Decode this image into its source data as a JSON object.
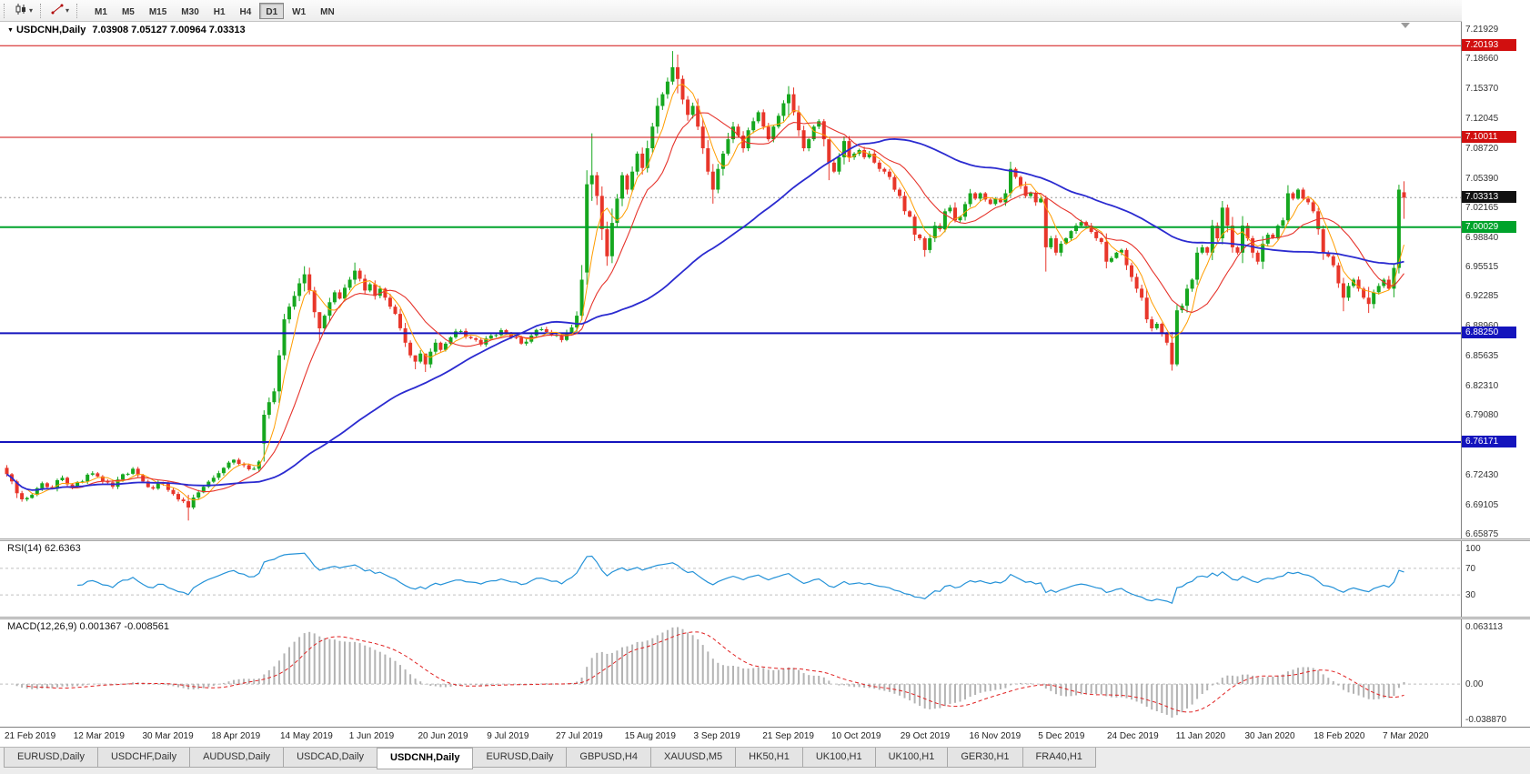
{
  "toolbar": {
    "chart_type_button": {
      "icon": "candlestick-chart-icon"
    },
    "line_studies_button": {
      "icon": "trendline-icon"
    },
    "timeframes": [
      {
        "label": "M1",
        "active": false
      },
      {
        "label": "M5",
        "active": false
      },
      {
        "label": "M15",
        "active": false
      },
      {
        "label": "M30",
        "active": false
      },
      {
        "label": "H1",
        "active": false
      },
      {
        "label": "H4",
        "active": false
      },
      {
        "label": "D1",
        "active": true
      },
      {
        "label": "W1",
        "active": false
      },
      {
        "label": "MN",
        "active": false
      }
    ]
  },
  "chart": {
    "title_marker": "▼",
    "symbol_title": "USDCNH,Daily",
    "ohlc_text": "7.03908 7.05127 7.00964 7.03313",
    "price_axis": {
      "ticks": [
        "7.21929",
        "7.18660",
        "7.15370",
        "7.12045",
        "7.08720",
        "7.05390",
        "7.02165",
        "6.98840",
        "6.95515",
        "6.92285",
        "6.88960",
        "6.85635",
        "6.82310",
        "6.79080",
        "6.75755",
        "6.72430",
        "6.69105",
        "6.65875"
      ]
    },
    "current_price": {
      "label": "7.03313",
      "value": 7.03313,
      "color": "#111111"
    },
    "colors": {
      "up": "#16a71f",
      "down": "#e8362a",
      "sma_fast": "#ff9d00",
      "sma_mid": "#e6342c",
      "sma_slow": "#2b2bd0",
      "bid_line": "#9a9a9a"
    }
  },
  "chart_data": {
    "type": "candlestick",
    "symbol": "USDCNH",
    "period": "Daily",
    "bars": 278,
    "visible_price_range": {
      "min": 6.6546,
      "max": 7.2284
    },
    "last_bar": {
      "open": 7.03908,
      "high": 7.05127,
      "low": 7.00964,
      "close": 7.03313
    },
    "hlines": [
      {
        "price": 7.20193,
        "label": "7.20193",
        "color": "#d10f0f",
        "width": 1
      },
      {
        "price": 7.10011,
        "label": "7.10011",
        "color": "#d10f0f",
        "width": 1
      },
      {
        "price": 7.00029,
        "label": "7.00029",
        "color": "#00a32b",
        "width": 2
      },
      {
        "price": 6.8825,
        "label": "6.88250",
        "color": "#1414bd",
        "width": 2
      },
      {
        "price": 6.76171,
        "label": "6.76171",
        "color": "#1414bd",
        "width": 2
      }
    ],
    "overlays": [
      {
        "name": "SMA(5)",
        "color": "#ff9d00"
      },
      {
        "name": "SMA(13)",
        "color": "#e6342c"
      },
      {
        "name": "SMA(55)",
        "color": "#2b2bd0"
      }
    ],
    "indicators": [
      {
        "name": "RSI(14)",
        "value": 62.6363
      },
      {
        "name": "MACD(12,26,9)",
        "values": [
          0.001367,
          -0.008561
        ]
      }
    ],
    "close_anchors": [
      [
        0,
        6.726
      ],
      [
        1,
        6.718
      ],
      [
        3,
        6.698
      ],
      [
        5,
        6.703
      ],
      [
        7,
        6.716
      ],
      [
        9,
        6.71
      ],
      [
        11,
        6.722
      ],
      [
        13,
        6.712
      ],
      [
        15,
        6.718
      ],
      [
        17,
        6.727
      ],
      [
        19,
        6.718
      ],
      [
        21,
        6.712
      ],
      [
        23,
        6.726
      ],
      [
        25,
        6.732
      ],
      [
        27,
        6.718
      ],
      [
        29,
        6.71
      ],
      [
        31,
        6.716
      ],
      [
        33,
        6.704
      ],
      [
        35,
        6.696
      ],
      [
        36,
        6.689
      ],
      [
        37,
        6.7
      ],
      [
        39,
        6.712
      ],
      [
        41,
        6.722
      ],
      [
        43,
        6.733
      ],
      [
        45,
        6.742
      ],
      [
        47,
        6.736
      ],
      [
        49,
        6.732
      ],
      [
        50,
        6.74
      ],
      [
        51,
        6.792
      ],
      [
        52,
        6.806
      ],
      [
        53,
        6.818
      ],
      [
        54,
        6.858
      ],
      [
        55,
        6.898
      ],
      [
        56,
        6.912
      ],
      [
        57,
        6.924
      ],
      [
        58,
        6.938
      ],
      [
        59,
        6.948
      ],
      [
        60,
        6.93
      ],
      [
        61,
        6.906
      ],
      [
        62,
        6.888
      ],
      [
        63,
        6.902
      ],
      [
        64,
        6.917
      ],
      [
        65,
        6.928
      ],
      [
        66,
        6.921
      ],
      [
        67,
        6.933
      ],
      [
        68,
        6.942
      ],
      [
        69,
        6.952
      ],
      [
        70,
        6.943
      ],
      [
        71,
        6.93
      ],
      [
        72,
        6.937
      ],
      [
        73,
        6.924
      ],
      [
        74,
        6.932
      ],
      [
        75,
        6.922
      ],
      [
        76,
        6.912
      ],
      [
        77,
        6.904
      ],
      [
        78,
        6.888
      ],
      [
        79,
        6.872
      ],
      [
        80,
        6.858
      ],
      [
        81,
        6.851
      ],
      [
        82,
        6.86
      ],
      [
        83,
        6.848
      ],
      [
        84,
        6.862
      ],
      [
        85,
        6.872
      ],
      [
        86,
        6.864
      ],
      [
        87,
        6.871
      ],
      [
        88,
        6.878
      ],
      [
        90,
        6.885
      ],
      [
        92,
        6.877
      ],
      [
        94,
        6.87
      ],
      [
        96,
        6.88
      ],
      [
        98,
        6.886
      ],
      [
        100,
        6.878
      ],
      [
        102,
        6.871
      ],
      [
        104,
        6.88
      ],
      [
        106,
        6.887
      ],
      [
        108,
        6.88
      ],
      [
        110,
        6.875
      ],
      [
        112,
        6.889
      ],
      [
        113,
        6.902
      ],
      [
        114,
        6.942
      ],
      [
        115,
        7.048
      ],
      [
        116,
        7.058
      ],
      [
        117,
        7.035
      ],
      [
        118,
        6.998
      ],
      [
        119,
        6.968
      ],
      [
        120,
        7.005
      ],
      [
        121,
        7.032
      ],
      [
        122,
        7.058
      ],
      [
        123,
        7.042
      ],
      [
        124,
        7.062
      ],
      [
        125,
        7.082
      ],
      [
        126,
        7.066
      ],
      [
        127,
        7.088
      ],
      [
        128,
        7.112
      ],
      [
        129,
        7.135
      ],
      [
        130,
        7.148
      ],
      [
        131,
        7.162
      ],
      [
        132,
        7.178
      ],
      [
        133,
        7.165
      ],
      [
        134,
        7.142
      ],
      [
        135,
        7.125
      ],
      [
        136,
        7.135
      ],
      [
        137,
        7.112
      ],
      [
        138,
        7.088
      ],
      [
        139,
        7.062
      ],
      [
        140,
        7.042
      ],
      [
        141,
        7.065
      ],
      [
        142,
        7.082
      ],
      [
        143,
        7.098
      ],
      [
        144,
        7.112
      ],
      [
        145,
        7.102
      ],
      [
        146,
        7.088
      ],
      [
        147,
        7.108
      ],
      [
        148,
        7.118
      ],
      [
        149,
        7.128
      ],
      [
        150,
        7.112
      ],
      [
        151,
        7.098
      ],
      [
        152,
        7.112
      ],
      [
        153,
        7.124
      ],
      [
        154,
        7.138
      ],
      [
        155,
        7.148
      ],
      [
        156,
        7.128
      ],
      [
        157,
        7.108
      ],
      [
        158,
        7.088
      ],
      [
        159,
        7.098
      ],
      [
        160,
        7.112
      ],
      [
        161,
        7.118
      ],
      [
        162,
        7.098
      ],
      [
        163,
        7.072
      ],
      [
        164,
        7.062
      ],
      [
        165,
        7.078
      ],
      [
        166,
        7.096
      ],
      [
        167,
        7.078
      ],
      [
        168,
        7.082
      ],
      [
        169,
        7.086
      ],
      [
        170,
        7.078
      ],
      [
        171,
        7.082
      ],
      [
        172,
        7.072
      ],
      [
        173,
        7.065
      ],
      [
        174,
        7.062
      ],
      [
        175,
        7.056
      ],
      [
        176,
        7.042
      ],
      [
        177,
        7.035
      ],
      [
        178,
        7.018
      ],
      [
        179,
        7.012
      ],
      [
        180,
        6.992
      ],
      [
        181,
        6.988
      ],
      [
        182,
        6.975
      ],
      [
        183,
        6.988
      ],
      [
        184,
        7.002
      ],
      [
        185,
        6.998
      ],
      [
        186,
        7.018
      ],
      [
        187,
        7.022
      ],
      [
        188,
        7.008
      ],
      [
        189,
        7.012
      ],
      [
        190,
        7.026
      ],
      [
        191,
        7.038
      ],
      [
        192,
        7.032
      ],
      [
        193,
        7.038
      ],
      [
        194,
        7.031
      ],
      [
        195,
        7.026
      ],
      [
        196,
        7.032
      ],
      [
        197,
        7.028
      ],
      [
        198,
        7.038
      ],
      [
        199,
        7.065
      ],
      [
        200,
        7.056
      ],
      [
        201,
        7.046
      ],
      [
        202,
        7.035
      ],
      [
        203,
        7.038
      ],
      [
        204,
        7.028
      ],
      [
        205,
        7.032
      ],
      [
        206,
        6.978
      ],
      [
        207,
        6.988
      ],
      [
        208,
        6.972
      ],
      [
        209,
        6.982
      ],
      [
        210,
        6.988
      ],
      [
        211,
        6.996
      ],
      [
        212,
        7.002
      ],
      [
        213,
        7.006
      ],
      [
        214,
        7.002
      ],
      [
        215,
        6.995
      ],
      [
        216,
        6.988
      ],
      [
        217,
        6.984
      ],
      [
        218,
        6.962
      ],
      [
        219,
        6.966
      ],
      [
        220,
        6.972
      ],
      [
        221,
        6.975
      ],
      [
        222,
        6.958
      ],
      [
        223,
        6.945
      ],
      [
        224,
        6.932
      ],
      [
        225,
        6.922
      ],
      [
        226,
        6.898
      ],
      [
        227,
        6.888
      ],
      [
        228,
        6.893
      ],
      [
        229,
        6.882
      ],
      [
        230,
        6.872
      ],
      [
        231,
        6.848
      ],
      [
        232,
        6.908
      ],
      [
        233,
        6.913
      ],
      [
        234,
        6.932
      ],
      [
        235,
        6.942
      ],
      [
        236,
        6.972
      ],
      [
        237,
        6.978
      ],
      [
        238,
        6.972
      ],
      [
        239,
        7.002
      ],
      [
        240,
        6.988
      ],
      [
        241,
        7.022
      ],
      [
        242,
        7.002
      ],
      [
        243,
        6.978
      ],
      [
        244,
        6.972
      ],
      [
        245,
        7.002
      ],
      [
        246,
        6.988
      ],
      [
        247,
        6.972
      ],
      [
        248,
        6.962
      ],
      [
        249,
        6.982
      ],
      [
        250,
        6.992
      ],
      [
        251,
        6.988
      ],
      [
        252,
        7.002
      ],
      [
        253,
        7.008
      ],
      [
        254,
        7.038
      ],
      [
        255,
        7.032
      ],
      [
        256,
        7.042
      ],
      [
        257,
        7.032
      ],
      [
        258,
        7.028
      ],
      [
        259,
        7.018
      ],
      [
        260,
        6.998
      ],
      [
        261,
        6.972
      ],
      [
        262,
        6.968
      ],
      [
        263,
        6.958
      ],
      [
        264,
        6.938
      ],
      [
        265,
        6.922
      ],
      [
        266,
        6.935
      ],
      [
        267,
        6.942
      ],
      [
        268,
        6.932
      ],
      [
        269,
        6.922
      ],
      [
        270,
        6.915
      ],
      [
        271,
        6.928
      ],
      [
        272,
        6.935
      ],
      [
        273,
        6.942
      ],
      [
        274,
        6.932
      ],
      [
        275,
        6.955
      ],
      [
        276,
        7.042
      ],
      [
        277,
        7.03313
      ]
    ],
    "wick_overrides": {
      "36": [
        6.703,
        6.6745
      ],
      "51": [
        6.797,
        6.74
      ],
      "55": [
        6.904,
        6.853
      ],
      "59": [
        6.957,
        6.929
      ],
      "62": [
        6.906,
        6.8745
      ],
      "69": [
        6.961,
        6.937
      ],
      "81": [
        6.858,
        6.8425
      ],
      "83": [
        6.854,
        6.8395
      ],
      "115": [
        7.0635,
        6.9365
      ],
      "116": [
        7.1045,
        7.0295
      ],
      "119": [
        7.0065,
        6.9575
      ],
      "132": [
        7.196,
        7.1585
      ],
      "133": [
        7.192,
        7.149
      ],
      "140": [
        7.0705,
        7.0265
      ],
      "155": [
        7.157,
        7.1225
      ],
      "163": [
        7.0975,
        7.0525
      ],
      "182": [
        6.99,
        6.9675
      ],
      "199": [
        7.073,
        7.034
      ],
      "206": [
        7.0355,
        6.951
      ],
      "231": [
        6.884,
        6.841
      ],
      "232": [
        6.914,
        6.846
      ],
      "254": [
        7.047,
        7.004
      ],
      "265": [
        6.944,
        6.907
      ],
      "270": [
        6.934,
        6.905
      ],
      "276": [
        7.0475,
        6.949
      ],
      "277": [
        7.05127,
        7.00964
      ]
    },
    "open_overrides": {
      "0": 6.733,
      "51": 6.76,
      "115": 6.95,
      "277": 7.03908
    }
  },
  "rsi": {
    "label": "RSI(14) 62.6363",
    "value": 62.6363,
    "color": "#2492d8",
    "levels": [
      70,
      30
    ],
    "ticks": [
      {
        "v": 100,
        "label": "100"
      },
      {
        "v": 70,
        "label": "70"
      },
      {
        "v": 30,
        "label": "30"
      }
    ]
  },
  "macd": {
    "label": "MACD(12,26,9) 0.001367 -0.008561",
    "values": [
      0.001367,
      -0.008561
    ],
    "bar_color": "#b3b3b3",
    "signal_color": "#e02020",
    "ticks": [
      {
        "v": 0.063113,
        "label": "0.063113"
      },
      {
        "v": 0,
        "label": "0.00"
      },
      {
        "v": -0.03887,
        "label": "-0.038870"
      }
    ]
  },
  "time_axis": {
    "labels": [
      "21 Feb 2019",
      "12 Mar 2019",
      "30 Mar 2019",
      "18 Apr 2019",
      "14 May 2019",
      "1 Jun 2019",
      "20 Jun 2019",
      "9 Jul 2019",
      "27 Jul 2019",
      "15 Aug 2019",
      "3 Sep 2019",
      "21 Sep 2019",
      "10 Oct 2019",
      "29 Oct 2019",
      "16 Nov 2019",
      "5 Dec 2019",
      "24 Dec 2019",
      "11 Jan 2020",
      "30 Jan 2020",
      "18 Feb 2020",
      "7 Mar 2020"
    ]
  },
  "tabs": [
    {
      "label": "EURUSD,Daily",
      "active": false
    },
    {
      "label": "USDCHF,Daily",
      "active": false
    },
    {
      "label": "AUDUSD,Daily",
      "active": false
    },
    {
      "label": "USDCAD,Daily",
      "active": false
    },
    {
      "label": "USDCNH,Daily",
      "active": true
    },
    {
      "label": "EURUSD,Daily",
      "active": false
    },
    {
      "label": "GBPUSD,H4",
      "active": false
    },
    {
      "label": "XAUUSD,M5",
      "active": false
    },
    {
      "label": "HK50,H1",
      "active": false
    },
    {
      "label": "UK100,H1",
      "active": false
    },
    {
      "label": "UK100,H1",
      "active": false
    },
    {
      "label": "GER30,H1",
      "active": false
    },
    {
      "label": "FRA40,H1",
      "active": false
    }
  ]
}
